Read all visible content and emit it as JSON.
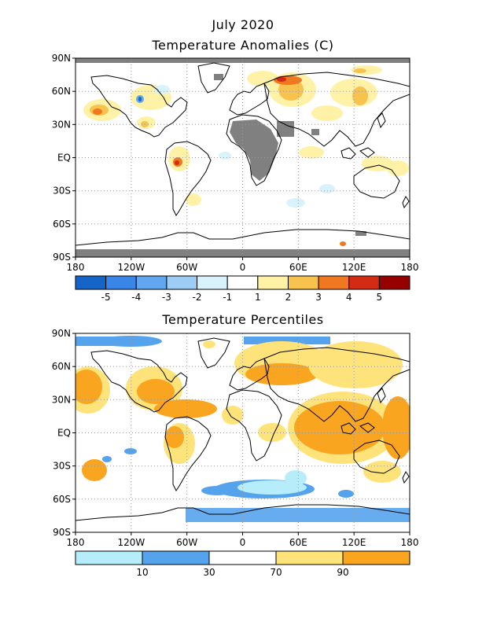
{
  "title": "July 2020",
  "maps": [
    {
      "subtitle": "Temperature Anomalies (C)",
      "lat_ticks": [
        "90N",
        "60N",
        "30N",
        "EQ",
        "30S",
        "60S",
        "90S"
      ],
      "lon_ticks": [
        "180",
        "120W",
        "60W",
        "0",
        "60E",
        "120E",
        "180"
      ],
      "legend": {
        "colors": [
          "#1565c8",
          "#3a86e8",
          "#62a6f0",
          "#9dcdf5",
          "#d8f3fb",
          "#ffffff",
          "#fff2a6",
          "#f7c24d",
          "#f07820",
          "#d42b14",
          "#960000"
        ],
        "labels": [
          "-5",
          "-4",
          "-3",
          "-2",
          "-1",
          "1",
          "2",
          "3",
          "4",
          "5"
        ]
      },
      "missing_color": "#808080"
    },
    {
      "subtitle": "Temperature Percentiles",
      "lat_ticks": [
        "90N",
        "60N",
        "30N",
        "EQ",
        "30S",
        "60S",
        "90S"
      ],
      "lon_ticks": [
        "180",
        "120W",
        "60W",
        "0",
        "60E",
        "120E",
        "180"
      ],
      "legend": {
        "colors": [
          "#b5eefa",
          "#55a3ec",
          "#ffffff",
          "#fde37a",
          "#f9a51f"
        ],
        "labels": [
          "10",
          "30",
          "70",
          "90"
        ]
      }
    }
  ]
}
